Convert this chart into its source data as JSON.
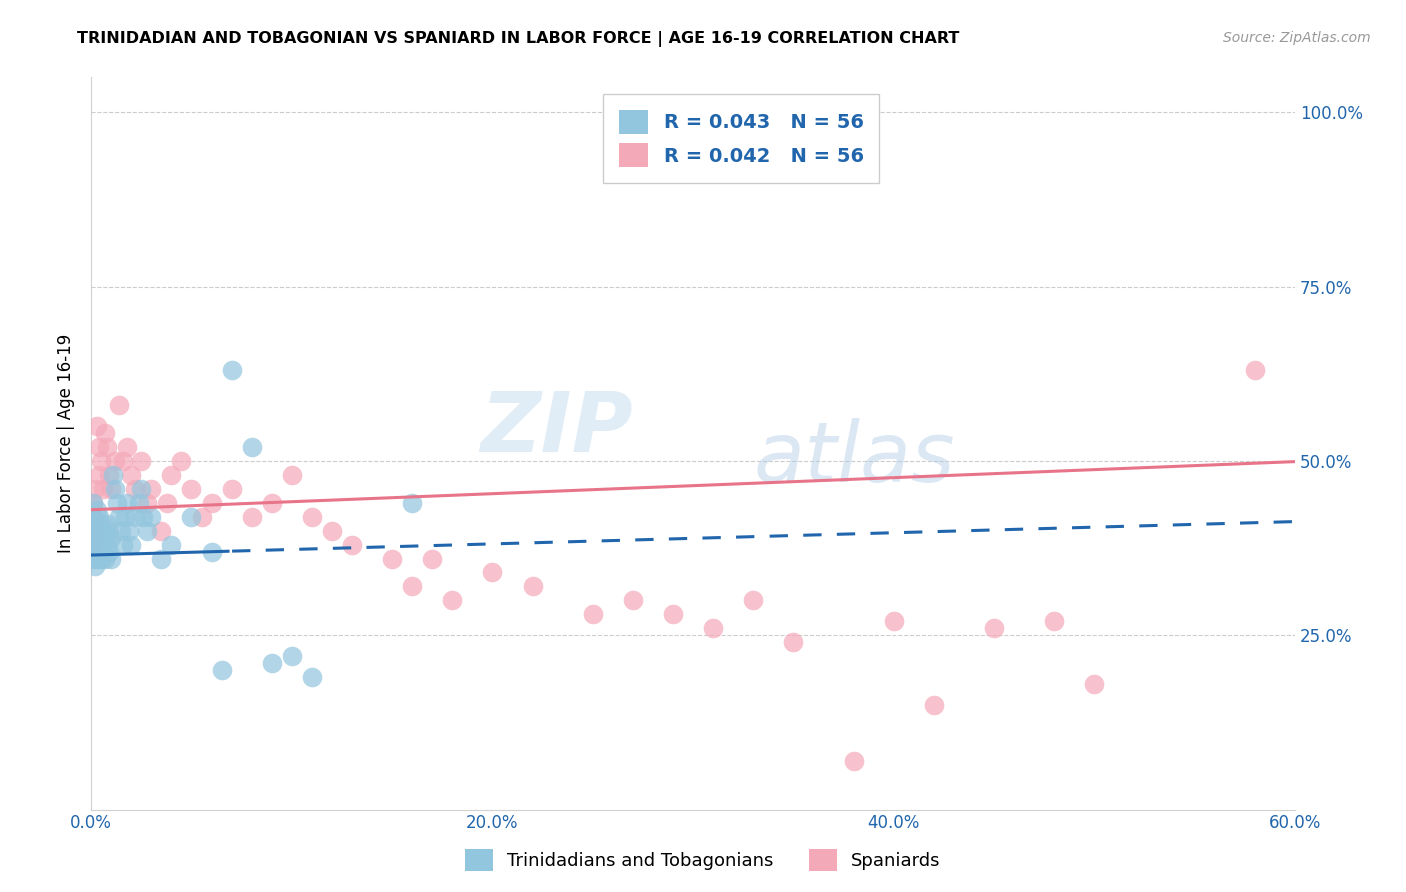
{
  "title": "TRINIDADIAN AND TOBAGONIAN VS SPANIARD IN LABOR FORCE | AGE 16-19 CORRELATION CHART",
  "source": "Source: ZipAtlas.com",
  "ylabel": "In Labor Force | Age 16-19",
  "xlim": [
    0.0,
    0.6
  ],
  "ylim": [
    0.0,
    1.05
  ],
  "xtick_labels": [
    "0.0%",
    "20.0%",
    "40.0%",
    "60.0%"
  ],
  "xtick_vals": [
    0.0,
    0.2,
    0.4,
    0.6
  ],
  "ytick_vals": [
    0.25,
    0.5,
    0.75,
    1.0
  ],
  "ytick_labels": [
    "25.0%",
    "50.0%",
    "75.0%",
    "100.0%"
  ],
  "legend_r1": "R = 0.043",
  "legend_n1": "N = 56",
  "legend_r2": "R = 0.042",
  "legend_n2": "N = 56",
  "blue_color": "#92c5de",
  "pink_color": "#f4a9b8",
  "blue_line_color": "#2166ac",
  "pink_line_color": "#e8748a",
  "legend_text_color": "#2166ac",
  "watermark_zip": "ZIP",
  "watermark_atlas": "atlas",
  "blue_label": "Trinidadians and Tobagonians",
  "pink_label": "Spaniards",
  "blue_line_intercept": 0.365,
  "blue_line_slope": 0.08,
  "blue_line_solid_end": 0.07,
  "pink_line_intercept": 0.43,
  "pink_line_slope": 0.115,
  "blue_scatter_x": [
    0.001,
    0.001,
    0.001,
    0.001,
    0.001,
    0.002,
    0.002,
    0.002,
    0.002,
    0.003,
    0.003,
    0.003,
    0.003,
    0.004,
    0.004,
    0.004,
    0.005,
    0.005,
    0.005,
    0.006,
    0.006,
    0.007,
    0.007,
    0.008,
    0.008,
    0.009,
    0.009,
    0.01,
    0.01,
    0.011,
    0.012,
    0.013,
    0.014,
    0.015,
    0.016,
    0.017,
    0.018,
    0.019,
    0.02,
    0.022,
    0.024,
    0.025,
    0.026,
    0.028,
    0.03,
    0.035,
    0.04,
    0.05,
    0.06,
    0.065,
    0.07,
    0.08,
    0.09,
    0.1,
    0.11,
    0.16
  ],
  "blue_scatter_y": [
    0.36,
    0.38,
    0.4,
    0.42,
    0.44,
    0.35,
    0.37,
    0.39,
    0.41,
    0.36,
    0.38,
    0.4,
    0.43,
    0.37,
    0.39,
    0.42,
    0.36,
    0.38,
    0.41,
    0.37,
    0.4,
    0.36,
    0.39,
    0.38,
    0.41,
    0.37,
    0.4,
    0.36,
    0.39,
    0.48,
    0.46,
    0.44,
    0.42,
    0.4,
    0.38,
    0.42,
    0.44,
    0.4,
    0.38,
    0.42,
    0.44,
    0.46,
    0.42,
    0.4,
    0.42,
    0.36,
    0.38,
    0.42,
    0.37,
    0.2,
    0.63,
    0.52,
    0.21,
    0.22,
    0.19,
    0.44
  ],
  "pink_scatter_x": [
    0.001,
    0.001,
    0.001,
    0.002,
    0.002,
    0.003,
    0.004,
    0.004,
    0.005,
    0.006,
    0.007,
    0.008,
    0.009,
    0.01,
    0.012,
    0.014,
    0.016,
    0.018,
    0.02,
    0.022,
    0.025,
    0.028,
    0.03,
    0.035,
    0.038,
    0.04,
    0.045,
    0.05,
    0.055,
    0.06,
    0.07,
    0.08,
    0.09,
    0.1,
    0.11,
    0.12,
    0.13,
    0.15,
    0.16,
    0.17,
    0.18,
    0.2,
    0.22,
    0.25,
    0.27,
    0.29,
    0.31,
    0.33,
    0.35,
    0.38,
    0.4,
    0.42,
    0.45,
    0.48,
    0.5,
    0.58
  ],
  "pink_scatter_y": [
    0.38,
    0.42,
    0.44,
    0.4,
    0.46,
    0.55,
    0.52,
    0.48,
    0.5,
    0.46,
    0.54,
    0.52,
    0.48,
    0.46,
    0.5,
    0.58,
    0.5,
    0.52,
    0.48,
    0.46,
    0.5,
    0.44,
    0.46,
    0.4,
    0.44,
    0.48,
    0.5,
    0.46,
    0.42,
    0.44,
    0.46,
    0.42,
    0.44,
    0.48,
    0.42,
    0.4,
    0.38,
    0.36,
    0.32,
    0.36,
    0.3,
    0.34,
    0.32,
    0.28,
    0.3,
    0.28,
    0.26,
    0.3,
    0.24,
    0.07,
    0.27,
    0.15,
    0.26,
    0.27,
    0.18,
    0.63
  ]
}
